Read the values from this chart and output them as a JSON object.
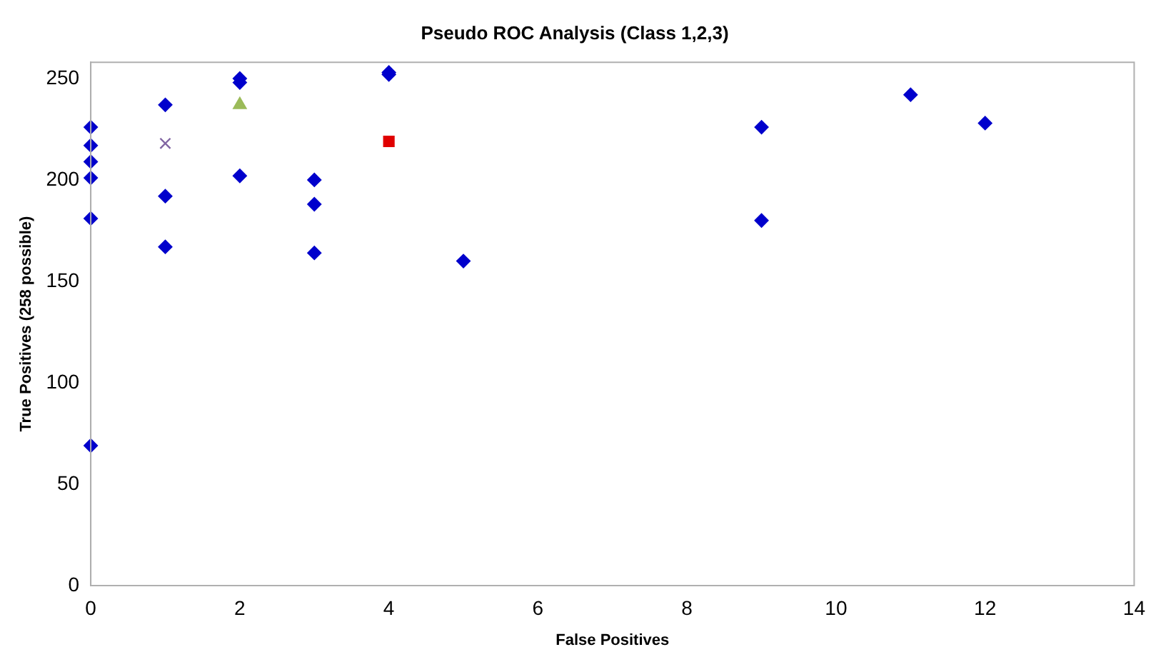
{
  "chart_data": {
    "type": "scatter",
    "title": "Pseudo ROC Analysis (Class 1,2,3)",
    "xlabel": "False Positives",
    "ylabel": "True Positives (258 possible)",
    "xlim": [
      0,
      14
    ],
    "xticks": [
      0,
      2,
      4,
      6,
      8,
      10,
      12,
      14
    ],
    "ylim": [
      0,
      258
    ],
    "yticks": [
      0,
      50,
      100,
      150,
      200,
      250
    ],
    "grid": false,
    "legend": false,
    "series": [
      {
        "color": "#0000cc",
        "marker": "diamond",
        "x": [
          0,
          0,
          0,
          0,
          0,
          0,
          1,
          1,
          1,
          2,
          2,
          2,
          3,
          3,
          3,
          4,
          4,
          5,
          9,
          9,
          11,
          12
        ],
        "values": [
          226,
          217,
          209,
          201,
          181,
          69,
          237,
          192,
          167,
          250,
          248,
          202,
          200,
          188,
          164,
          253,
          252,
          160,
          226,
          180,
          242,
          228
        ]
      },
      {
        "color": "#8064a2",
        "marker": "cross",
        "x": [
          1
        ],
        "values": [
          218
        ]
      },
      {
        "color": "#9bbb59",
        "marker": "triangle",
        "x": [
          2
        ],
        "values": [
          237
        ]
      },
      {
        "color": "#e00000",
        "marker": "square",
        "x": [
          4
        ],
        "values": [
          219
        ]
      }
    ]
  }
}
